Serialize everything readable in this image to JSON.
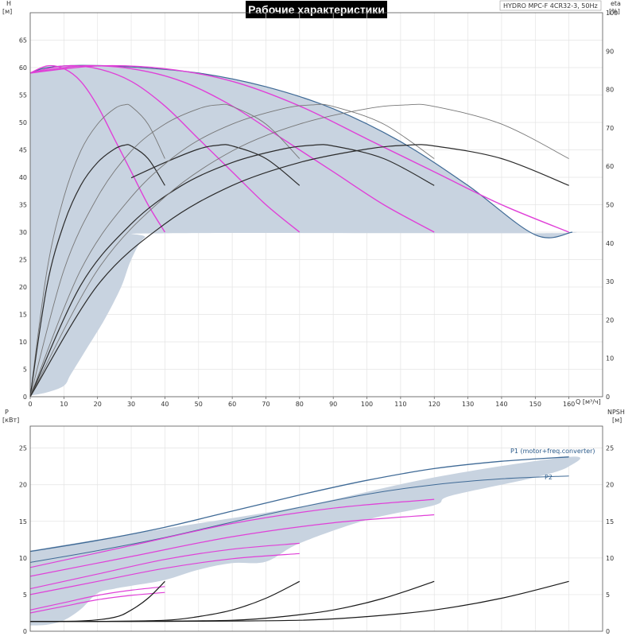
{
  "colors": {
    "envelope": "#c8d3e0",
    "envelope_edge": "#3f6a96",
    "head_curve": "#e040d8",
    "eff_curve_dark": "#2b2b2b",
    "eff_curve_light": "#777777",
    "power_line": "#3f6a96",
    "power_curve": "#e040d8",
    "npsh_curve": "#1a1a1a",
    "grid": "#e4e4e4",
    "title_bg": "#000000"
  },
  "chart_data": [
    {
      "type": "line",
      "title": "Рабочие характеристики",
      "subtitle": "HYDRO MPC-F 4CR32-3, 50Hz",
      "xlabel": "Q [м³/ч]",
      "ylabel_left_name": "H",
      "ylabel_left_unit": "[м]",
      "ylabel_right_name": "eta",
      "ylabel_right_unit": "[%]",
      "xlim": [
        0,
        170
      ],
      "ylim_left": [
        0,
        70
      ],
      "ylim_right": [
        0,
        100
      ],
      "x_ticks": [
        0,
        10,
        20,
        30,
        40,
        50,
        60,
        70,
        80,
        90,
        100,
        110,
        120,
        130,
        140,
        150,
        160
      ],
      "y_ticks_left": [
        0,
        5,
        10,
        15,
        20,
        25,
        30,
        35,
        40,
        45,
        50,
        55,
        60,
        65
      ],
      "y_ticks_right": [
        0,
        10,
        20,
        30,
        40,
        50,
        60,
        70,
        80,
        90,
        100
      ],
      "grid": true,
      "envelope_head": {
        "upper": [
          [
            0,
            59
          ],
          [
            5,
            60
          ],
          [
            15,
            60.4
          ],
          [
            30,
            60.1
          ],
          [
            50,
            59
          ],
          [
            70,
            56.5
          ],
          [
            90,
            52.5
          ],
          [
            110,
            46.5
          ],
          [
            130,
            38.5
          ],
          [
            150,
            29.5
          ],
          [
            161,
            30
          ]
        ],
        "lower": [
          [
            161,
            30
          ],
          [
            150,
            29.8
          ],
          [
            40,
            29.8
          ],
          [
            34,
            29
          ],
          [
            30,
            25
          ],
          [
            27,
            20
          ],
          [
            22,
            14
          ],
          [
            16,
            8
          ],
          [
            12,
            4
          ],
          [
            10,
            2
          ],
          [
            5,
            0.8
          ],
          [
            0,
            0.2
          ]
        ]
      },
      "head_curves": [
        {
          "pumps": 1,
          "x": [
            0,
            5,
            10,
            15,
            20,
            25,
            30,
            35,
            40
          ],
          "y": [
            59,
            60.3,
            59.8,
            57.5,
            53,
            47,
            41,
            35,
            30
          ]
        },
        {
          "pumps": 2,
          "x": [
            0,
            10,
            20,
            30,
            40,
            50,
            60,
            70,
            80
          ],
          "y": [
            59,
            60.3,
            59.8,
            57.5,
            53,
            47,
            41,
            35,
            30
          ]
        },
        {
          "pumps": 3,
          "x": [
            0,
            15,
            30,
            45,
            60,
            75,
            90,
            105,
            120
          ],
          "y": [
            59,
            60.3,
            59.8,
            57.5,
            53,
            47,
            41,
            35,
            30
          ]
        },
        {
          "pumps": 4,
          "x": [
            0,
            20,
            40,
            60,
            80,
            100,
            120,
            140,
            160
          ],
          "y": [
            59,
            60.3,
            59.8,
            57.5,
            53,
            47,
            41,
            35,
            30
          ]
        }
      ],
      "eff_curves": [
        {
          "pumps": 1,
          "total": true,
          "x": [
            0,
            5,
            10,
            15,
            20,
            25,
            28,
            30,
            35,
            40
          ],
          "y": [
            0,
            33,
            52,
            64,
            71,
            75,
            76,
            75.6,
            71,
            62
          ]
        },
        {
          "pumps": 1,
          "total": false,
          "x": [
            0,
            5,
            10,
            15,
            20,
            25,
            28,
            30,
            35,
            40
          ],
          "y": [
            0,
            29,
            45,
            55,
            61,
            64.5,
            65.5,
            65.3,
            62,
            55
          ]
        },
        {
          "pumps": 2,
          "total": true,
          "x": [
            0,
            10,
            20,
            30,
            40,
            50,
            56,
            60,
            70,
            80
          ],
          "y": [
            0,
            33,
            52,
            64,
            71,
            75,
            76,
            75.6,
            71,
            62
          ]
        },
        {
          "pumps": 2,
          "total": false,
          "x": [
            30,
            40,
            50,
            56,
            60,
            70,
            80
          ],
          "y": [
            57,
            61,
            64.5,
            65.5,
            65.3,
            62,
            55
          ]
        },
        {
          "pumps": 3,
          "total": true,
          "x": [
            0,
            15,
            30,
            45,
            60,
            75,
            84,
            90,
            105,
            120
          ],
          "y": [
            0,
            33,
            52,
            64,
            71,
            75,
            76,
            75.6,
            71,
            62
          ]
        },
        {
          "pumps": 3,
          "total": false,
          "x": [
            0,
            15,
            30,
            45,
            60,
            75,
            84,
            90,
            105,
            120
          ],
          "y": [
            0,
            29,
            45,
            55,
            61,
            64.5,
            65.5,
            65.3,
            62,
            55
          ]
        },
        {
          "pumps": 4,
          "total": true,
          "x": [
            0,
            20,
            40,
            60,
            80,
            100,
            112,
            120,
            140,
            160
          ],
          "y": [
            0,
            33,
            52,
            64,
            71,
            75,
            76,
            75.6,
            71,
            62
          ]
        },
        {
          "pumps": 4,
          "total": false,
          "x": [
            0,
            20,
            40,
            60,
            80,
            100,
            112,
            120,
            140,
            160
          ],
          "y": [
            0,
            29,
            45,
            55,
            61,
            64.5,
            65.5,
            65.3,
            62,
            55
          ]
        }
      ]
    },
    {
      "type": "line",
      "xlabel": "",
      "ylabel_left_name": "P",
      "ylabel_left_unit": "[кВт]",
      "ylabel_right_name": "NPSH",
      "ylabel_right_unit": "[м]",
      "xlim": [
        0,
        170
      ],
      "ylim_left": [
        0,
        28
      ],
      "ylim_right": [
        0,
        28
      ],
      "y_ticks_left": [
        0,
        5,
        10,
        15,
        20,
        25
      ],
      "y_ticks_right": [
        0,
        5,
        10,
        15,
        20,
        25
      ],
      "grid": true,
      "envelope_power": {
        "upper": [
          [
            0,
            11
          ],
          [
            40,
            14
          ],
          [
            80,
            17
          ],
          [
            120,
            21
          ],
          [
            160,
            23.8
          ]
        ],
        "lower": [
          [
            160,
            22.5
          ],
          [
            150,
            21
          ],
          [
            125,
            18.5
          ],
          [
            120,
            17.2
          ],
          [
            100,
            15.2
          ],
          [
            80,
            12
          ],
          [
            70,
            9.5
          ],
          [
            60,
            9.3
          ],
          [
            50,
            8.4
          ],
          [
            40,
            7
          ],
          [
            30,
            6.2
          ],
          [
            25,
            5.8
          ],
          [
            20,
            5.2
          ],
          [
            15,
            3
          ],
          [
            10,
            1.5
          ],
          [
            5,
            0.9
          ],
          [
            0,
            0.8
          ]
        ]
      },
      "series": [
        {
          "name": "P1 (motor+freq.converter)",
          "x": [
            0,
            20,
            40,
            60,
            80,
            100,
            120,
            140,
            160
          ],
          "y": [
            10.9,
            12.4,
            14.2,
            16.4,
            18.6,
            20.6,
            22.2,
            23.2,
            23.8
          ]
        },
        {
          "name": "P2",
          "x": [
            0,
            20,
            40,
            60,
            80,
            100,
            120,
            140,
            160
          ],
          "y": [
            9.4,
            11.0,
            12.8,
            14.9,
            16.9,
            18.7,
            20.0,
            20.8,
            21.2
          ]
        }
      ],
      "power_curves": [
        {
          "pumps": 1,
          "x": [
            0,
            10,
            20,
            30,
            40
          ],
          "y": [
            2.9,
            3.9,
            4.9,
            5.6,
            6.1
          ]
        },
        {
          "pumps": 1,
          "x": [
            0,
            10,
            20,
            30,
            40
          ],
          "y": [
            2.5,
            3.4,
            4.3,
            4.9,
            5.3
          ]
        },
        {
          "pumps": 2,
          "x": [
            0,
            20,
            40,
            60,
            80
          ],
          "y": [
            5.8,
            7.8,
            9.8,
            11.2,
            12.0
          ]
        },
        {
          "pumps": 2,
          "x": [
            0,
            20,
            40,
            60,
            80
          ],
          "y": [
            5.0,
            6.8,
            8.6,
            9.9,
            10.6
          ]
        },
        {
          "pumps": 3,
          "x": [
            0,
            30,
            60,
            90,
            120
          ],
          "y": [
            8.7,
            11.7,
            14.7,
            16.8,
            18.0
          ]
        },
        {
          "pumps": 3,
          "x": [
            0,
            30,
            60,
            90,
            120
          ],
          "y": [
            7.5,
            10.2,
            12.9,
            14.8,
            15.9
          ]
        }
      ],
      "npsh_curves": [
        {
          "pumps": 1,
          "x": [
            0,
            15,
            25,
            30,
            35,
            40
          ],
          "y": [
            1.35,
            1.4,
            1.9,
            2.9,
            4.5,
            6.8
          ]
        },
        {
          "pumps": 2,
          "x": [
            0,
            20,
            40,
            50,
            60,
            70,
            80
          ],
          "y": [
            1.35,
            1.35,
            1.5,
            2.0,
            2.9,
            4.5,
            6.8
          ]
        },
        {
          "pumps": 3,
          "x": [
            0,
            30,
            60,
            75,
            90,
            105,
            120
          ],
          "y": [
            1.35,
            1.35,
            1.5,
            2.0,
            2.9,
            4.5,
            6.8
          ]
        },
        {
          "pumps": 4,
          "x": [
            0,
            40,
            80,
            100,
            120,
            140,
            160
          ],
          "y": [
            1.35,
            1.35,
            1.5,
            2.0,
            2.9,
            4.5,
            6.8
          ]
        }
      ]
    }
  ]
}
